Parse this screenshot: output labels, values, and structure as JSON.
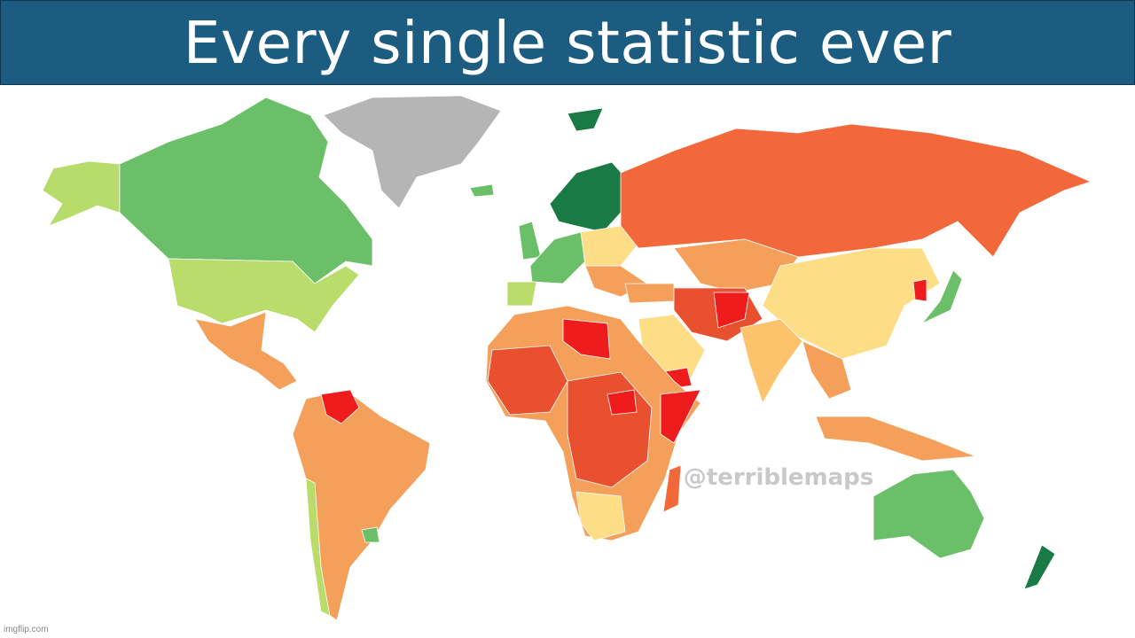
{
  "header": {
    "title": "Every single statistic ever"
  },
  "map": {
    "watermark": "@terriblemaps"
  },
  "footer": {
    "credit": "imgflip.com"
  }
}
